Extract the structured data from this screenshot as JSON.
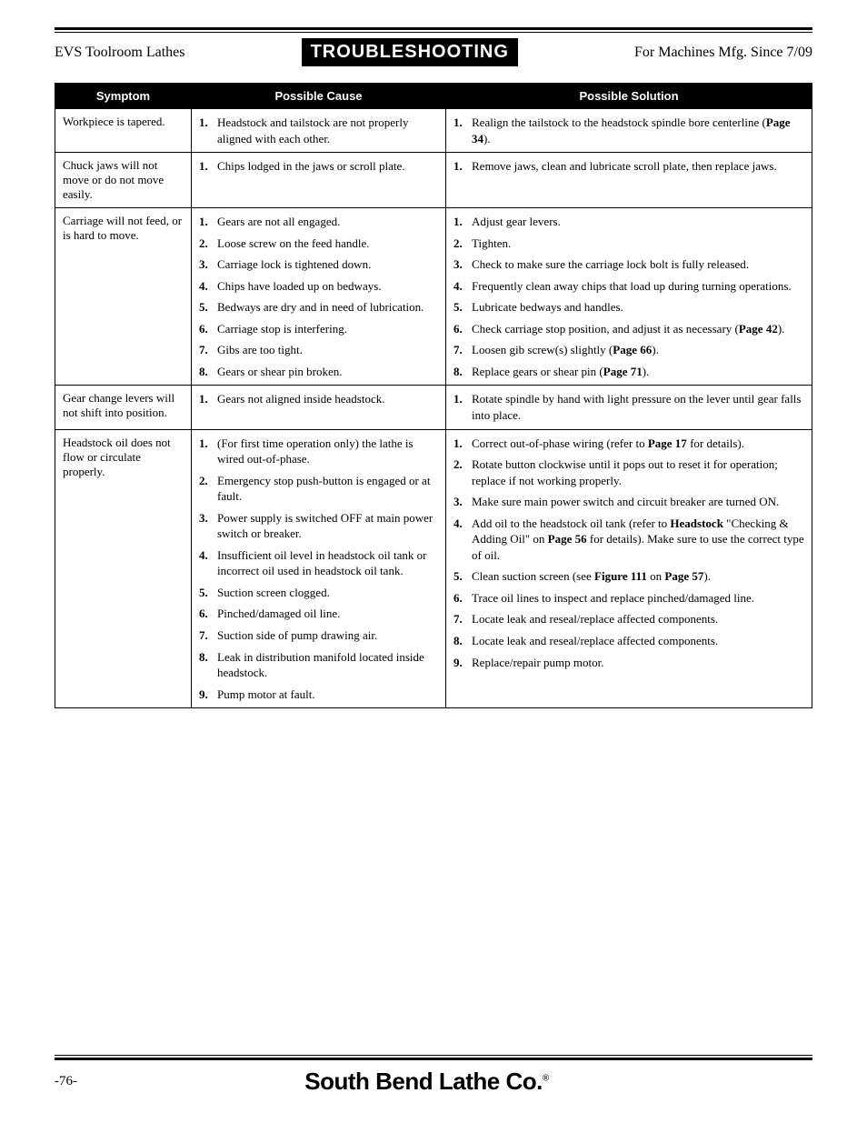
{
  "header": {
    "left": "EVS Toolroom Lathes",
    "center": "TROUBLESHOOTING",
    "right": "For Machines Mfg. Since 7/09"
  },
  "columns": {
    "symptom": "Symptom",
    "cause": "Possible Cause",
    "solution": "Possible Solution"
  },
  "rows": [
    {
      "symptom": "Workpiece is tapered.",
      "causes": [
        "Headstock and tailstock are not properly aligned with each other."
      ],
      "solutions": [
        "Realign the tailstock to the headstock spindle bore centerline (<span class=\"b\">Page 34</span>)."
      ]
    },
    {
      "symptom": "Chuck jaws will not move or do not move easily.",
      "causes": [
        "Chips lodged in the jaws or scroll plate."
      ],
      "solutions": [
        "Remove jaws, clean and lubricate scroll plate, then replace jaws."
      ]
    },
    {
      "symptom": "Carriage will not feed, or is hard to move.",
      "causes": [
        "Gears are not all engaged.",
        "Loose screw on the feed handle.",
        "Carriage lock is tightened down.",
        "Chips have loaded up on bedways.",
        "Bedways are dry and in need of lubrication.",
        "Carriage stop is interfering.",
        "Gibs are too tight.",
        "Gears or shear pin broken."
      ],
      "solutions": [
        "Adjust gear levers.",
        "Tighten.",
        "Check to make sure the carriage lock bolt is fully released.",
        "Frequently clean away chips that load up during turning operations.",
        "Lubricate bedways and handles.",
        "Check carriage stop position, and adjust it as necessary (<span class=\"b\">Page 42</span>).",
        "Loosen gib screw(s) slightly (<span class=\"b\">Page 66</span>).",
        "Replace gears or shear pin (<span class=\"b\">Page 71</span>)."
      ]
    },
    {
      "symptom": "Gear change levers will not shift into position.",
      "causes": [
        "Gears not aligned inside headstock."
      ],
      "solutions": [
        "Rotate spindle by hand with light pressure on the lever until gear falls into place."
      ]
    },
    {
      "symptom": "Headstock oil does not flow or circulate properly.",
      "causes": [
        "(For first time operation only) the lathe is wired out-of-phase.",
        "Emergency stop push-button is engaged or at fault.",
        "Power supply is switched OFF at main power switch or breaker.",
        "Insufficient oil level in headstock oil tank or incorrect oil used in headstock oil tank.",
        "Suction screen clogged.",
        "Pinched/damaged oil line.",
        "Suction side of pump drawing air.",
        "Leak in distribution manifold located inside headstock.",
        "Pump motor at fault."
      ],
      "solutions": [
        "Correct out-of-phase wiring (refer to <span class=\"b\">Page 17</span> for details).",
        "Rotate button clockwise until it pops out to reset it for operation; replace if not working properly.",
        "Make sure main power switch and circuit breaker are turned ON.",
        "Add oil to the headstock oil tank (refer to <span class=\"b\">Headstock</span> \"Checking & Adding Oil\" on <span class=\"b\">Page 56</span> for details). Make sure to use the correct type of oil.",
        "Clean suction screen (see <span class=\"b\">Figure 111</span> on <span class=\"b\">Page 57</span>).",
        "Trace oil lines to inspect and replace pinched/damaged line.",
        "Locate leak and reseal/replace affected components.",
        "Locate leak and reseal/replace affected components.",
        "Replace/repair pump motor."
      ]
    }
  ],
  "footer": {
    "pageno": "-76-",
    "brand": "South Bend Lathe Co."
  }
}
